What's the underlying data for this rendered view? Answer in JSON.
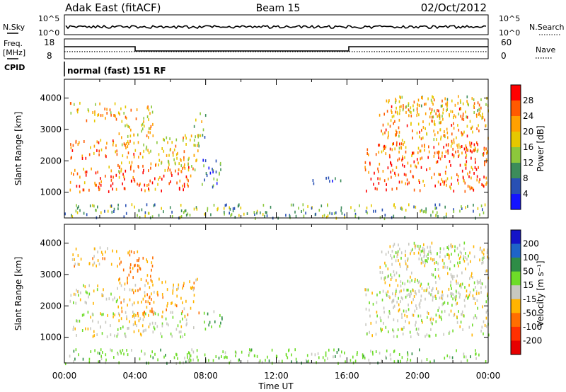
{
  "header": {
    "station": "Adak East (fitACF)",
    "beam": "Beam 15",
    "date": "02/Oct/2012"
  },
  "top_panels": {
    "nsky_label": "N.Sky",
    "nsearch_label": "N.Search",
    "noise_ticks": [
      "10^5",
      "10^0"
    ],
    "freq_label": "Freq.",
    "freq_unit": "[MHz]",
    "freq_ticks": [
      "18",
      "8"
    ],
    "nave_label": "Nave",
    "nave_ticks": [
      "60",
      "0"
    ],
    "cpid_label": "CPID",
    "cpid_value": "normal (fast) 151 RF"
  },
  "chart_data": [
    {
      "type": "heatmap",
      "panel": "power",
      "ylabel": "Slant Range [km]",
      "xlabel": "",
      "yticks": [
        1000,
        2000,
        3000,
        4000
      ],
      "ylim": [
        180,
        4600
      ],
      "xlim": [
        0,
        24
      ],
      "colorbar_label": "Power [dB]",
      "colorbar_ticks": [
        "28",
        "24",
        "20",
        "16",
        "12",
        "8",
        "4"
      ],
      "colorbar_colors": [
        "#ff0000",
        "#ff5a00",
        "#ffa000",
        "#e6c800",
        "#8cc83c",
        "#3c8c5a",
        "#2850b4",
        "#1414ff"
      ],
      "regions": [
        {
          "t0": 0.3,
          "t1": 7.3,
          "r0": 1050,
          "r1": 1850,
          "value": 26
        },
        {
          "t0": 3.0,
          "t1": 7.6,
          "r0": 1700,
          "r1": 2900,
          "value": 20
        },
        {
          "t0": 0.3,
          "t1": 4.0,
          "r0": 2100,
          "r1": 2700,
          "value": 24
        },
        {
          "t0": 0.3,
          "t1": 3.0,
          "r0": 3300,
          "r1": 3900,
          "value": 22
        },
        {
          "t0": 3.0,
          "t1": 5.0,
          "r0": 2800,
          "r1": 3800,
          "value": 20
        },
        {
          "t0": 7.3,
          "t1": 8.0,
          "r0": 2500,
          "r1": 3600,
          "value": 14
        },
        {
          "t0": 7.7,
          "t1": 9.0,
          "r0": 1200,
          "r1": 2100,
          "value": 8
        },
        {
          "t0": 13.8,
          "t1": 15.8,
          "r0": 1300,
          "r1": 1500,
          "value": 6
        },
        {
          "t0": 17.0,
          "t1": 24.0,
          "r0": 1050,
          "r1": 2600,
          "value": 26
        },
        {
          "t0": 17.8,
          "t1": 24.0,
          "r0": 2200,
          "r1": 4000,
          "value": 22
        },
        {
          "t0": 18.5,
          "t1": 24.0,
          "r0": 3400,
          "r1": 4100,
          "value": 18
        },
        {
          "t0": 0.0,
          "t1": 24.0,
          "r0": 200,
          "r1": 650,
          "value": 12
        }
      ]
    },
    {
      "type": "heatmap",
      "panel": "velocity",
      "ylabel": "Slant Range [km]",
      "xlabel": "Time UT",
      "xticks": [
        "00:00",
        "04:00",
        "08:00",
        "12:00",
        "16:00",
        "20:00",
        "00:00"
      ],
      "yticks": [
        1000,
        2000,
        3000,
        4000
      ],
      "ylim": [
        180,
        4600
      ],
      "xlim": [
        0,
        24
      ],
      "colorbar_label": "Velocity [m s⁻¹]",
      "colorbar_ticks": [
        "200",
        "100",
        "50",
        "15",
        "-15",
        "-50",
        "-100",
        "-200"
      ],
      "colorbar_colors": [
        "#1414c8",
        "#1e64c8",
        "#2e8c46",
        "#6edc28",
        "#c8c8c0",
        "#ffb400",
        "#ff6e00",
        "#ff3000",
        "#e60000"
      ],
      "regions": [
        {
          "t0": 0.3,
          "t1": 7.3,
          "r0": 1050,
          "r1": 1850,
          "value": 0
        },
        {
          "t0": 3.0,
          "t1": 7.6,
          "r0": 1700,
          "r1": 2900,
          "value": -40
        },
        {
          "t0": 0.3,
          "t1": 4.0,
          "r0": 2100,
          "r1": 2700,
          "value": 0
        },
        {
          "t0": 0.3,
          "t1": 3.0,
          "r0": 3300,
          "r1": 3900,
          "value": -30
        },
        {
          "t0": 3.0,
          "t1": 5.0,
          "r0": 2800,
          "r1": 3800,
          "value": -60
        },
        {
          "t0": 7.7,
          "t1": 8.9,
          "r0": 1300,
          "r1": 1900,
          "value": 40
        },
        {
          "t0": 17.0,
          "t1": 24.0,
          "r0": 1050,
          "r1": 2600,
          "value": 0
        },
        {
          "t0": 17.8,
          "t1": 24.0,
          "r0": 2200,
          "r1": 4000,
          "value": 0
        },
        {
          "t0": 18.5,
          "t1": 24.0,
          "r0": 3400,
          "r1": 4100,
          "value": 0
        },
        {
          "t0": 0.0,
          "t1": 24.0,
          "r0": 200,
          "r1": 650,
          "value": 30
        }
      ]
    }
  ]
}
